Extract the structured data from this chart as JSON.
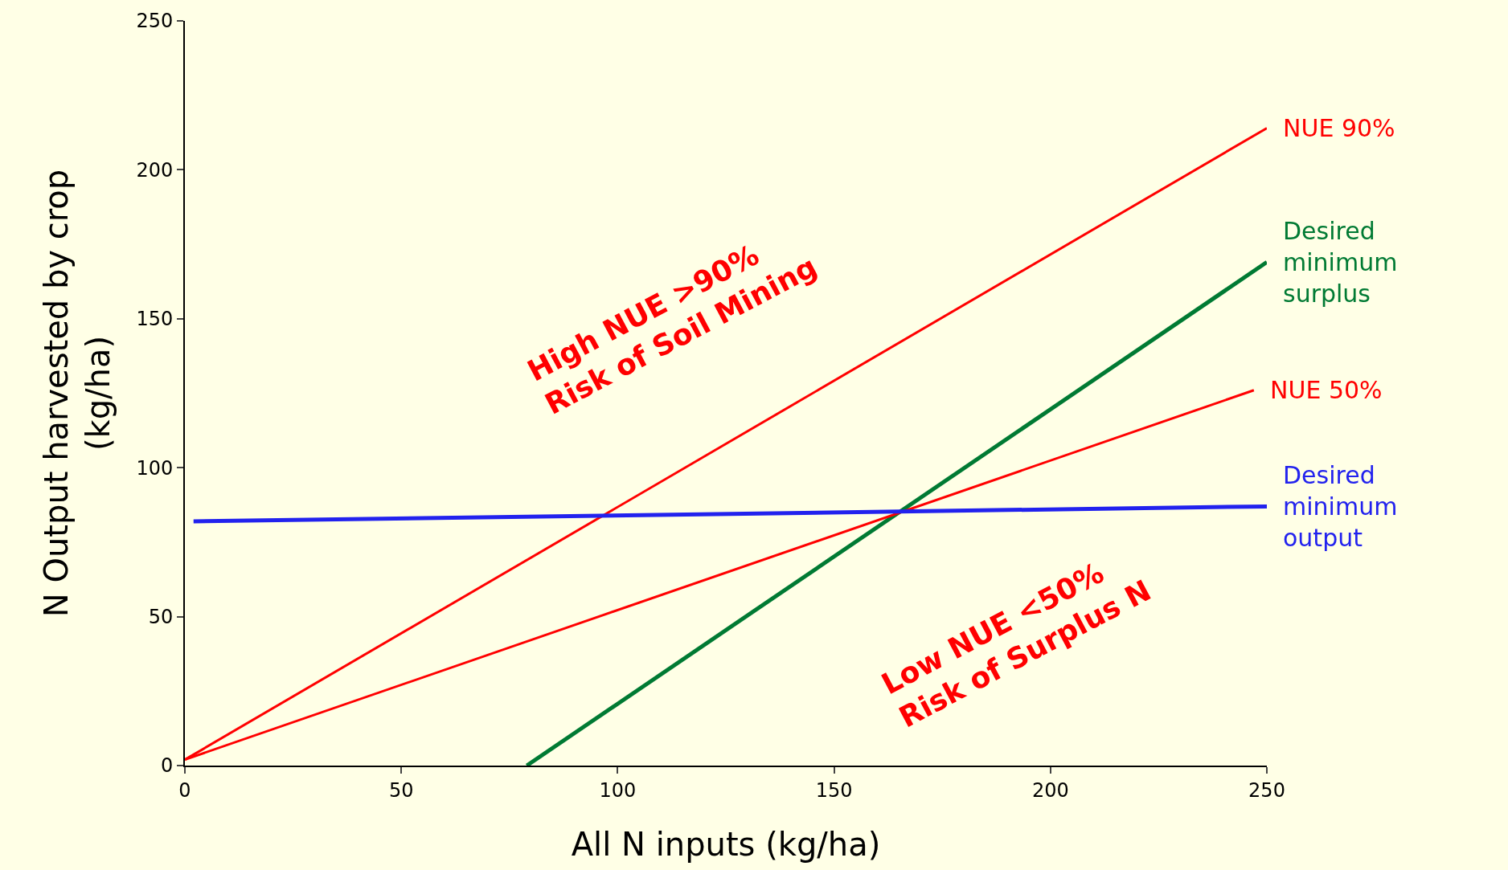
{
  "chart_data": {
    "type": "line",
    "xlabel": "All N inputs (kg/ha)",
    "ylabel": "N Output harvested by crop\n(kg/ha)",
    "xlim": [
      0,
      250
    ],
    "ylim": [
      0,
      250
    ],
    "xticks": [
      0,
      50,
      100,
      150,
      200,
      250
    ],
    "yticks": [
      0,
      50,
      100,
      150,
      200,
      250
    ],
    "grid": false,
    "legend": false,
    "series": [
      {
        "name": "NUE 90%",
        "color": "#ff0000",
        "x": [
          0,
          250
        ],
        "values": [
          2,
          214
        ]
      },
      {
        "name": "Desired\nminimum\nsurplus",
        "color": "#007a33",
        "x": [
          79,
          250
        ],
        "values": [
          0,
          169
        ]
      },
      {
        "name": "NUE 50%",
        "color": "#ff0000",
        "x": [
          0,
          247
        ],
        "values": [
          2,
          126
        ]
      },
      {
        "name": "Desired\nminimum\noutput",
        "color": "#2222ee",
        "x": [
          2,
          250
        ],
        "values": [
          82,
          87
        ]
      }
    ],
    "annotations": [
      "High NUE >90%\nRisk of Soil Mining",
      "Low NUE <50%\nRisk of Surplus N"
    ]
  }
}
